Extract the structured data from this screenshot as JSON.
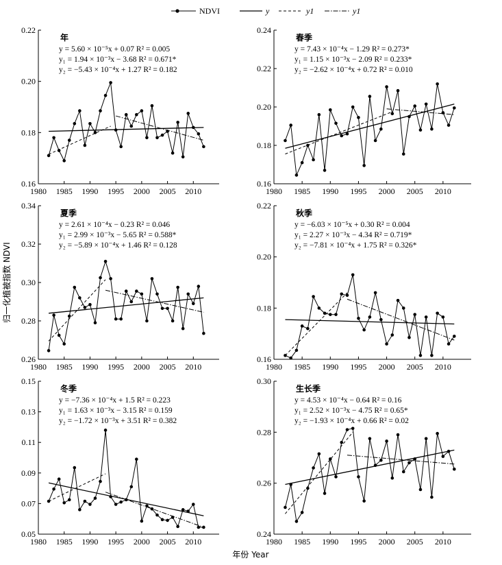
{
  "legend": {
    "ndvi": "NDVI",
    "y": "y",
    "y1": "y1",
    "y2": "y1"
  },
  "xlabel": "年份 Year",
  "ylabel": "归一化植被指数 NDVI",
  "chart_data": [
    {
      "type": "line",
      "title": "年",
      "x": [
        1982,
        1983,
        1984,
        1985,
        1986,
        1987,
        1988,
        1989,
        1990,
        1991,
        1992,
        1993,
        1994,
        1995,
        1996,
        1997,
        1998,
        1999,
        2000,
        2001,
        2002,
        2003,
        2004,
        2005,
        2006,
        2007,
        2008,
        2009,
        2010,
        2011,
        2012
      ],
      "values": [
        0.171,
        0.178,
        0.173,
        0.169,
        0.177,
        0.1835,
        0.1885,
        0.175,
        0.1835,
        0.18,
        0.1885,
        0.1945,
        0.1995,
        0.181,
        0.1745,
        0.187,
        0.1825,
        0.187,
        0.1885,
        0.178,
        0.1905,
        0.178,
        0.179,
        0.1805,
        0.172,
        0.184,
        0.1705,
        0.1875,
        0.182,
        0.1795,
        0.1745
      ],
      "xlim": [
        1980,
        2015
      ],
      "ylim": [
        0.16,
        0.22
      ],
      "xticks": [
        "1980",
        "1985",
        "1990",
        "1995",
        "2000",
        "2005",
        "2010"
      ],
      "yticks": [
        "0.16",
        "0.18",
        "0.20",
        "0.22"
      ],
      "trends": {
        "y": {
          "x": [
            1982,
            2012
          ],
          "y": [
            0.1805,
            0.182
          ]
        },
        "y1": {
          "x": [
            1982,
            1994
          ],
          "y": [
            0.1715,
            0.1825
          ]
        },
        "y2": {
          "x": [
            1995,
            2012
          ],
          "y": [
            0.1865,
            0.177
          ]
        }
      },
      "equations": [
        "y  =  5.60 ×  10⁻⁵x + 0.07     R² = 0.005",
        "y₁ =  1.94 ×  10⁻³x − 3.68     R² = 0.671*",
        "y₂ = −5.43 ×  10⁻⁴x + 1.27     R² = 0.182"
      ]
    },
    {
      "type": "line",
      "title": "春季",
      "x": [
        1982,
        1983,
        1984,
        1985,
        1986,
        1987,
        1988,
        1989,
        1990,
        1991,
        1992,
        1993,
        1994,
        1995,
        1996,
        1997,
        1998,
        1999,
        2000,
        2001,
        2002,
        2003,
        2004,
        2005,
        2006,
        2007,
        2008,
        2009,
        2010,
        2011,
        2012
      ],
      "values": [
        0.1825,
        0.1905,
        0.1645,
        0.171,
        0.18,
        0.1725,
        0.196,
        0.167,
        0.1985,
        0.1915,
        0.185,
        0.186,
        0.2,
        0.1945,
        0.1695,
        0.2055,
        0.1825,
        0.1885,
        0.2105,
        0.1965,
        0.2085,
        0.1755,
        0.195,
        0.2005,
        0.188,
        0.2015,
        0.1885,
        0.212,
        0.197,
        0.1905,
        0.1995
      ],
      "xlim": [
        1980,
        2015
      ],
      "ylim": [
        0.16,
        0.24
      ],
      "xticks": [
        "1980",
        "1985",
        "1990",
        "1995",
        "2000",
        "2005",
        "2010"
      ],
      "yticks": [
        "0.16",
        "0.18",
        "0.20",
        "0.22",
        "0.24"
      ],
      "trends": {
        "y": {
          "x": [
            1982,
            2012
          ],
          "y": [
            0.1785,
            0.2015
          ]
        },
        "y1": {
          "x": [
            1982,
            2001
          ],
          "y": [
            0.1755,
            0.1975
          ]
        },
        "y2": {
          "x": [
            2000,
            2012
          ],
          "y": [
            0.199,
            0.196
          ]
        }
      },
      "equations": [
        "y  =  7.43 ×  10⁻⁴x − 1.29    R² = 0.273*",
        "y₁ =  1.15 ×  10⁻³x − 2.09    R² = 0.233*",
        "y₂ = −2.62 ×  10⁻⁴x + 0.72    R² = 0.010"
      ]
    },
    {
      "type": "line",
      "title": "夏季",
      "x": [
        1982,
        1983,
        1984,
        1985,
        1986,
        1987,
        1988,
        1989,
        1990,
        1991,
        1992,
        1993,
        1994,
        1995,
        1996,
        1997,
        1998,
        1999,
        2000,
        2001,
        2002,
        2003,
        2004,
        2005,
        2006,
        2007,
        2008,
        2009,
        2010,
        2011,
        2012
      ],
      "values": [
        0.2645,
        0.283,
        0.2725,
        0.268,
        0.2825,
        0.2975,
        0.292,
        0.287,
        0.2885,
        0.279,
        0.3025,
        0.311,
        0.302,
        0.281,
        0.281,
        0.2955,
        0.29,
        0.2955,
        0.294,
        0.28,
        0.302,
        0.294,
        0.2865,
        0.2865,
        0.28,
        0.2975,
        0.276,
        0.294,
        0.289,
        0.298,
        0.2735
      ],
      "xlim": [
        1980,
        2015
      ],
      "ylim": [
        0.26,
        0.34
      ],
      "xticks": [
        "1980",
        "1985",
        "1990",
        "1995",
        "2000",
        "2005",
        "2010"
      ],
      "yticks": [
        "0.26",
        "0.28",
        "0.30",
        "0.32",
        "0.34"
      ],
      "trends": {
        "y": {
          "x": [
            1982,
            2012
          ],
          "y": [
            0.284,
            0.292
          ]
        },
        "y1": {
          "x": [
            1982,
            1993
          ],
          "y": [
            0.2695,
            0.3015
          ]
        },
        "y2": {
          "x": [
            1993,
            2012
          ],
          "y": [
            0.296,
            0.2845
          ]
        }
      },
      "equations": [
        "y  =  2.61 × 10⁻⁴x − 0.23     R² = 0.046",
        "y₁ =  2.99 × 10⁻³x − 5.65     R² = 0.588*",
        "y₂ = −5.89 × 10⁻⁴x + 1.46     R² = 0.128"
      ]
    },
    {
      "type": "line",
      "title": "秋季",
      "x": [
        1982,
        1983,
        1984,
        1985,
        1986,
        1987,
        1988,
        1989,
        1990,
        1991,
        1992,
        1993,
        1994,
        1995,
        1996,
        1997,
        1998,
        1999,
        2000,
        2001,
        2002,
        2003,
        2004,
        2005,
        2006,
        2007,
        2008,
        2009,
        2010,
        2011,
        2012
      ],
      "values": [
        0.1615,
        0.1605,
        0.1635,
        0.173,
        0.172,
        0.1845,
        0.18,
        0.178,
        0.1775,
        0.1775,
        0.1855,
        0.185,
        0.193,
        0.176,
        0.1715,
        0.1765,
        0.186,
        0.1755,
        0.166,
        0.1695,
        0.183,
        0.18,
        0.1685,
        0.1775,
        0.1615,
        0.1765,
        0.1615,
        0.178,
        0.1765,
        0.166,
        0.169
      ],
      "xlim": [
        1980,
        2015
      ],
      "ylim": [
        0.16,
        0.22
      ],
      "xticks": [
        "1980",
        "1985",
        "1990",
        "1995",
        "2000",
        "2005",
        "2010"
      ],
      "yticks": [
        "0.16",
        "0.18",
        "0.20",
        "0.22"
      ],
      "trends": {
        "y": {
          "x": [
            1982,
            2012
          ],
          "y": [
            0.1755,
            0.1738
          ]
        },
        "y1": {
          "x": [
            1982,
            1993
          ],
          "y": [
            0.1615,
            0.186
          ]
        },
        "y2": {
          "x": [
            1993,
            2012
          ],
          "y": [
            0.1835,
            0.1675
          ]
        }
      },
      "equations": [
        "y  = −6.03 × 10⁻⁵x + 0.30     R² = 0.004",
        "y₁ =  2.27 × 10⁻³x − 4.34     R² = 0.719*",
        "y₂ = −7.81 × 10⁻⁴x + 1.75     R² = 0.326*"
      ]
    },
    {
      "type": "line",
      "title": "冬季",
      "x": [
        1982,
        1983,
        1984,
        1985,
        1986,
        1987,
        1988,
        1989,
        1990,
        1991,
        1992,
        1993,
        1994,
        1995,
        1996,
        1997,
        1998,
        1999,
        2000,
        2001,
        2002,
        2003,
        2004,
        2005,
        2006,
        2007,
        2008,
        2009,
        2010,
        2011,
        2012
      ],
      "values": [
        0.0715,
        0.0795,
        0.086,
        0.0705,
        0.0725,
        0.0935,
        0.066,
        0.0715,
        0.0695,
        0.0735,
        0.0845,
        0.118,
        0.0745,
        0.0695,
        0.071,
        0.0725,
        0.081,
        0.099,
        0.0585,
        0.0685,
        0.0665,
        0.0625,
        0.0595,
        0.059,
        0.061,
        0.055,
        0.066,
        0.065,
        0.0695,
        0.0545,
        0.0545
      ],
      "xlim": [
        1980,
        2015
      ],
      "ylim": [
        0.05,
        0.15
      ],
      "xticks": [
        "1980",
        "1985",
        "1990",
        "1995",
        "2000",
        "2005",
        "2010"
      ],
      "yticks": [
        "0.05",
        "0.07",
        "0.09",
        "0.11",
        "0.13",
        "0.15"
      ],
      "trends": {
        "y": {
          "x": [
            1982,
            2012
          ],
          "y": [
            0.0835,
            0.062
          ]
        },
        "y1": {
          "x": [
            1982,
            1993
          ],
          "y": [
            0.0715,
            0.0895
          ]
        },
        "y2": {
          "x": [
            1993,
            2012
          ],
          "y": [
            0.0775,
            0.0545
          ]
        }
      },
      "equations": [
        "y  = −7.36 × 10⁻⁴x + 1.5      R² = 0.223",
        "y₁ =  1.63 × 10⁻³x − 3.15     R² = 0.159",
        "y₂ = −1.72 × 10⁻³x + 3.51     R² = 0.382"
      ]
    },
    {
      "type": "line",
      "title": "生长季",
      "x": [
        1982,
        1983,
        1984,
        1985,
        1986,
        1987,
        1988,
        1989,
        1990,
        1991,
        1992,
        1993,
        1994,
        1995,
        1996,
        1997,
        1998,
        1999,
        2000,
        2001,
        2002,
        2003,
        2004,
        2005,
        2006,
        2007,
        2008,
        2009,
        2010,
        2011,
        2012
      ],
      "values": [
        0.2505,
        0.2595,
        0.245,
        0.2485,
        0.258,
        0.266,
        0.2715,
        0.256,
        0.2695,
        0.2625,
        0.276,
        0.281,
        0.2815,
        0.2625,
        0.253,
        0.2775,
        0.267,
        0.269,
        0.2765,
        0.262,
        0.279,
        0.2645,
        0.268,
        0.2695,
        0.2575,
        0.2775,
        0.2545,
        0.2795,
        0.2705,
        0.2725,
        0.2655
      ],
      "xlim": [
        1980,
        2015
      ],
      "ylim": [
        0.24,
        0.3
      ],
      "xticks": [
        "1980",
        "1985",
        "1990",
        "1995",
        "2000",
        "2005",
        "2010"
      ],
      "yticks": [
        "0.24",
        "0.26",
        "0.28",
        "0.30"
      ],
      "trends": {
        "y": {
          "x": [
            1982,
            2012
          ],
          "y": [
            0.2595,
            0.273
          ]
        },
        "y1": {
          "x": [
            1982,
            1994
          ],
          "y": [
            0.248,
            0.28
          ]
        },
        "y2": {
          "x": [
            1993,
            2012
          ],
          "y": [
            0.271,
            0.2675
          ]
        }
      },
      "equations": [
        "y  =  4.53 × 10⁻⁴x − 0.64     R² = 0.16",
        "y₁ =  2.52 × 10⁻³x − 4.75     R² = 0.65*",
        "y₂ = −1.93 × 10⁻⁴x + 0.66     R² = 0.02"
      ]
    }
  ]
}
